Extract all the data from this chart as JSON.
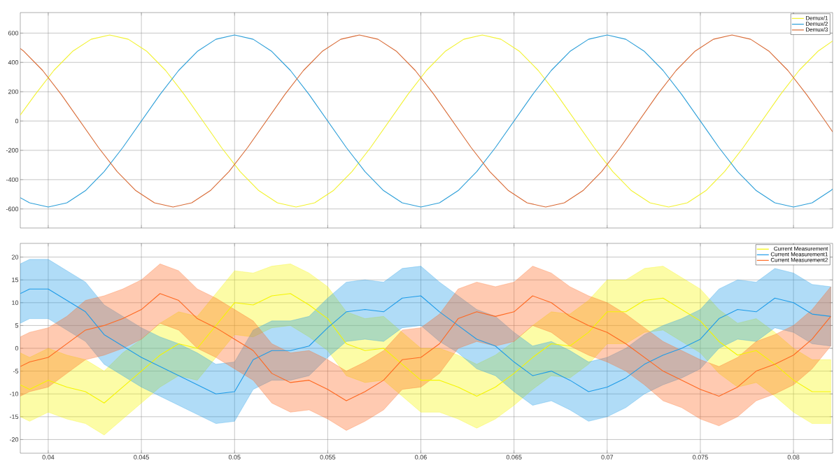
{
  "chart_data": [
    {
      "type": "line",
      "xlim": [
        0.0385,
        0.0821
      ],
      "ylim": [
        -730,
        740
      ],
      "xticks": [
        0.04,
        0.045,
        0.05,
        0.055,
        0.06,
        0.065,
        0.07,
        0.075,
        0.08
      ],
      "yticks": [
        -600,
        -400,
        -200,
        0,
        200,
        400,
        600
      ],
      "tick_labels": "y",
      "grid": true,
      "legend": "top right",
      "series": [
        {
          "name": "Demux/1",
          "color": "#f2f230",
          "x": [
            0.0385,
            0.0393,
            0.0403,
            0.0413,
            0.0423,
            0.0433,
            0.0443,
            0.0453,
            0.0463,
            0.0473,
            0.0483,
            0.0493,
            0.0503,
            0.0513,
            0.0523,
            0.0533,
            0.0543,
            0.0553,
            0.0563,
            0.0573,
            0.0583,
            0.0593,
            0.0603,
            0.0613,
            0.0623,
            0.0633,
            0.0643,
            0.0653,
            0.0663,
            0.0673,
            0.0683,
            0.0693,
            0.0703,
            0.0713,
            0.0723,
            0.0733,
            0.0743,
            0.0753,
            0.0763,
            0.0773,
            0.0783,
            0.0793,
            0.0803,
            0.0813,
            0.0821
          ],
          "values": [
            41,
            181,
            345,
            475,
            558,
            587,
            558,
            475,
            345,
            181,
            0,
            -181,
            -345,
            -475,
            -558,
            -587,
            -558,
            -475,
            -345,
            -181,
            0,
            181,
            345,
            475,
            558,
            587,
            558,
            475,
            345,
            181,
            0,
            -181,
            -345,
            -475,
            -558,
            -587,
            -558,
            -475,
            -345,
            -181,
            0,
            181,
            345,
            475,
            546
          ]
        },
        {
          "name": "Demux/2",
          "color": "#2b9ed8",
          "x": [
            0.0385,
            0.039,
            0.04,
            0.041,
            0.042,
            0.043,
            0.044,
            0.045,
            0.046,
            0.047,
            0.048,
            0.049,
            0.05,
            0.051,
            0.052,
            0.053,
            0.054,
            0.055,
            0.056,
            0.057,
            0.058,
            0.059,
            0.06,
            0.061,
            0.062,
            0.063,
            0.064,
            0.065,
            0.066,
            0.067,
            0.068,
            0.069,
            0.07,
            0.071,
            0.072,
            0.073,
            0.074,
            0.075,
            0.076,
            0.077,
            0.078,
            0.079,
            0.08,
            0.081,
            0.082,
            0.0821
          ],
          "values": [
            -523,
            -558,
            -587,
            -558,
            -475,
            -345,
            -181,
            0,
            181,
            345,
            475,
            558,
            587,
            558,
            475,
            345,
            181,
            0,
            -181,
            -345,
            -475,
            -558,
            -587,
            -558,
            -475,
            -345,
            -181,
            0,
            181,
            345,
            475,
            558,
            587,
            558,
            475,
            345,
            181,
            0,
            -181,
            -345,
            -475,
            -558,
            -587,
            -558,
            -475,
            -464
          ]
        },
        {
          "name": "Demux/3",
          "color": "#d86a35",
          "x": [
            0.0385,
            0.0387,
            0.0397,
            0.0407,
            0.0417,
            0.0427,
            0.0437,
            0.0447,
            0.0457,
            0.0467,
            0.0477,
            0.0487,
            0.0497,
            0.0507,
            0.0517,
            0.0527,
            0.0537,
            0.0547,
            0.0557,
            0.0567,
            0.0577,
            0.0587,
            0.0597,
            0.0607,
            0.0617,
            0.0627,
            0.0637,
            0.0647,
            0.0657,
            0.0667,
            0.0677,
            0.0687,
            0.0697,
            0.0707,
            0.0717,
            0.0727,
            0.0737,
            0.0747,
            0.0757,
            0.0767,
            0.0777,
            0.0787,
            0.0797,
            0.0807,
            0.0817,
            0.0821
          ],
          "values": [
            495,
            475,
            345,
            181,
            0,
            -181,
            -345,
            -475,
            -558,
            -587,
            -558,
            -475,
            -345,
            -181,
            0,
            181,
            345,
            475,
            558,
            587,
            558,
            475,
            345,
            181,
            0,
            -181,
            -345,
            -475,
            -558,
            -587,
            -558,
            -475,
            -345,
            -181,
            0,
            181,
            345,
            475,
            558,
            587,
            558,
            475,
            345,
            181,
            0,
            -74
          ]
        }
      ]
    },
    {
      "type": "line",
      "xlim": [
        0.0385,
        0.0821
      ],
      "ylim": [
        -23,
        23
      ],
      "xticks": [
        0.04,
        0.045,
        0.05,
        0.055,
        0.06,
        0.065,
        0.07,
        0.075,
        0.08
      ],
      "yticks": [
        -20,
        -15,
        -10,
        -5,
        0,
        5,
        10,
        15,
        20
      ],
      "grid": true,
      "legend": "top right",
      "x": [
        0.0385,
        0.039,
        0.04,
        0.041,
        0.042,
        0.043,
        0.044,
        0.045,
        0.046,
        0.047,
        0.048,
        0.049,
        0.05,
        0.051,
        0.052,
        0.053,
        0.054,
        0.055,
        0.056,
        0.057,
        0.058,
        0.059,
        0.06,
        0.061,
        0.062,
        0.063,
        0.064,
        0.065,
        0.066,
        0.067,
        0.068,
        0.069,
        0.07,
        0.071,
        0.072,
        0.073,
        0.074,
        0.075,
        0.076,
        0.077,
        0.078,
        0.079,
        0.08,
        0.081,
        0.082
      ],
      "series": [
        {
          "name": "Current Measurement",
          "color": "#f5f500",
          "values": [
            -8,
            -9,
            -7,
            -8.5,
            -9.5,
            -12,
            -8.5,
            -5,
            -1.5,
            1,
            0,
            5,
            10,
            9.5,
            11.5,
            12,
            9.5,
            6.5,
            1,
            -0.5,
            0,
            -3.5,
            -7,
            -7,
            -8.5,
            -10.5,
            -8.5,
            -5.5,
            -2,
            1,
            0.5,
            3.5,
            8,
            8,
            10.5,
            11,
            8.5,
            6,
            1.5,
            -1.5,
            -0.5,
            -3.5,
            -7,
            -9.5,
            -9.5
          ],
          "upper": [
            -1,
            -2,
            0,
            -1.5,
            -2.5,
            -5,
            -1,
            2,
            5.5,
            8,
            7,
            12,
            17,
            16.5,
            18,
            18.5,
            16.5,
            13.5,
            8,
            6.5,
            7,
            3.5,
            0,
            0,
            -1.5,
            -3.5,
            -1.5,
            1.5,
            5,
            8,
            7.5,
            10.5,
            15,
            15,
            17.5,
            18,
            15.5,
            13,
            8.5,
            5.5,
            6.5,
            3.5,
            0,
            -2.5,
            -2.5
          ],
          "lower": [
            -15,
            -16,
            -14,
            -15.5,
            -16.5,
            -19,
            -15.5,
            -12,
            -8.5,
            -6,
            -7,
            -2,
            3,
            2.5,
            4.5,
            5,
            2.5,
            -0.5,
            -6,
            -7.5,
            -7,
            -10.5,
            -14,
            -14,
            -15.5,
            -17.5,
            -15.5,
            -12.5,
            -9,
            -6,
            -6.5,
            -3.5,
            1,
            1,
            3.5,
            4,
            1.5,
            -1,
            -5.5,
            -8.5,
            -7.5,
            -10.5,
            -14,
            -16.5,
            -16.5
          ]
        },
        {
          "name": "Current Measurement1",
          "color": "#1e9be8",
          "values": [
            12,
            13,
            13,
            10.5,
            8,
            3,
            0.5,
            -2,
            -4,
            -6,
            -8,
            -10,
            -9.5,
            -2.5,
            -0.5,
            -0.5,
            0.5,
            4.5,
            8,
            8.5,
            8,
            11,
            11.5,
            8,
            5,
            2,
            0.5,
            -3,
            -6,
            -5,
            -7,
            -9.5,
            -8.5,
            -6.5,
            -3.5,
            -1.5,
            0,
            2,
            6.5,
            8.5,
            8,
            11,
            10,
            7.5,
            7
          ],
          "upper": [
            18.5,
            19.5,
            19.5,
            17,
            14.5,
            9.5,
            7,
            4.5,
            2.5,
            1,
            -1,
            -3.5,
            -3,
            4,
            6,
            6,
            7,
            11,
            14.5,
            15,
            14.5,
            17.5,
            18,
            14.5,
            11.5,
            8.5,
            7,
            3.5,
            0.5,
            1.5,
            -0.5,
            -3,
            -2,
            0,
            3,
            5,
            6.5,
            8.5,
            13,
            15,
            14.5,
            17.5,
            16.5,
            14,
            13.5
          ],
          "lower": [
            5.5,
            6.5,
            6.5,
            4,
            1.5,
            -3.5,
            -6,
            -8.5,
            -10.5,
            -12.5,
            -14.5,
            -16.5,
            -16,
            -9,
            -7,
            -7,
            -6,
            -2,
            1.5,
            2,
            1.5,
            4.5,
            5,
            1.5,
            -1,
            -4.5,
            -6,
            -9.5,
            -12.5,
            -11.5,
            -13.5,
            -16,
            -15,
            -13,
            -10,
            -8,
            -6.5,
            -4.5,
            0,
            2,
            1.5,
            4.5,
            3.5,
            1,
            0.5
          ]
        },
        {
          "name": "Current Measurement2",
          "color": "#ff6820",
          "values": [
            -4,
            -3,
            -2,
            1,
            4,
            5,
            6.5,
            8.5,
            12,
            10.5,
            6.5,
            4.5,
            2,
            -0.5,
            -5.5,
            -7.5,
            -7,
            -9,
            -11.5,
            -9.5,
            -7,
            -2.5,
            -2,
            1,
            6.5,
            8,
            7,
            8,
            11.5,
            10,
            7,
            5,
            3.5,
            1,
            -2,
            -5,
            -7,
            -9,
            -10.5,
            -8.5,
            -5,
            -3.5,
            -1.5,
            2,
            7
          ],
          "upper": [
            2.5,
            3.5,
            4.5,
            7,
            10.5,
            11.5,
            13,
            15,
            18.5,
            17,
            13,
            11,
            8.5,
            6,
            1,
            -1,
            -0.5,
            -2.5,
            -5,
            -3,
            -0.5,
            4,
            4.5,
            7.5,
            13,
            14.5,
            13.5,
            14.5,
            18,
            16.5,
            13.5,
            11.5,
            10,
            7.5,
            4.5,
            1.5,
            -0.5,
            -2.5,
            -4,
            -2,
            1.5,
            3,
            5,
            8.5,
            13.5
          ],
          "lower": [
            -10.5,
            -9.5,
            -8.5,
            -5.5,
            -2.5,
            -1.5,
            0,
            2,
            5.5,
            4,
            0,
            -2,
            -4.5,
            -7,
            -12,
            -14,
            -13.5,
            -15.5,
            -18,
            -16,
            -13.5,
            -9,
            -8.5,
            -5.5,
            0,
            1.5,
            0.5,
            1.5,
            5,
            3.5,
            0.5,
            -1.5,
            -3,
            -5,
            -8,
            -11.5,
            -13,
            -15.5,
            -17,
            -15,
            -11.5,
            -10,
            -8,
            -4.5,
            0.5
          ]
        }
      ]
    }
  ]
}
